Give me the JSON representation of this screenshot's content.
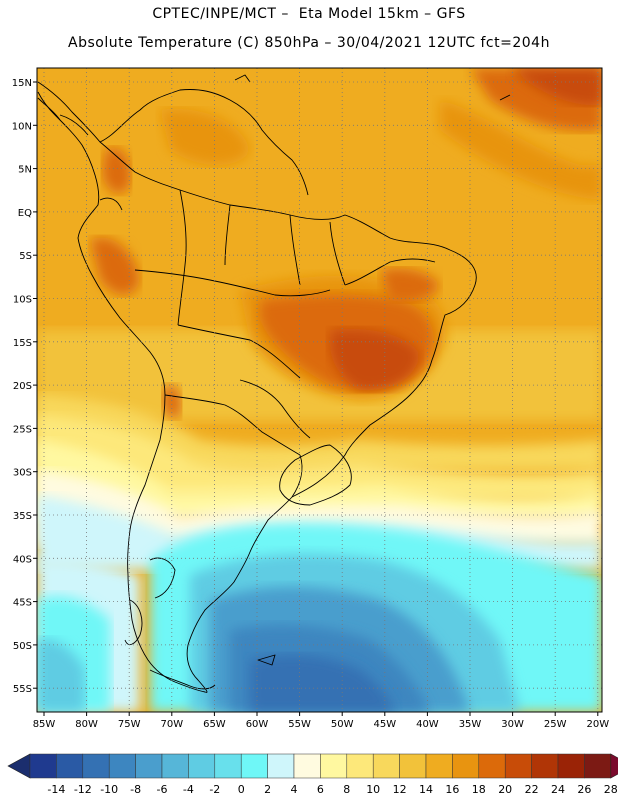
{
  "header": {
    "line1": "CPTEC/INPE/MCT –  Eta Model 15km – GFS",
    "line2": "Absolute Temperature (C) 850hPa – 30/04/2021 12UTC fct=204h"
  },
  "map": {
    "lat_labels": [
      "15N",
      "10N",
      "5N",
      "EQ",
      "5S",
      "10S",
      "15S",
      "20S",
      "25S",
      "30S",
      "35S",
      "40S",
      "45S",
      "50S",
      "55S"
    ],
    "lon_labels": [
      "85W",
      "80W",
      "75W",
      "70W",
      "65W",
      "60W",
      "55W",
      "50W",
      "45W",
      "40W",
      "35W",
      "30W",
      "25W",
      "20W"
    ],
    "grid": "dotted"
  },
  "legend": {
    "labels": [
      "-14",
      "-12",
      "-10",
      "-8",
      "-6",
      "-4",
      "-2",
      "0",
      "2",
      "4",
      "6",
      "8",
      "10",
      "12",
      "14",
      "16",
      "18",
      "20",
      "22",
      "24",
      "26",
      "28"
    ],
    "colors": [
      "#1f3a8f",
      "#2a5aa5",
      "#3471b3",
      "#3d86c0",
      "#4a9ecd",
      "#56b6d8",
      "#5fcce3",
      "#68e0ec",
      "#6ff7f7",
      "#cff6fb",
      "#fffbe0",
      "#fff8a0",
      "#fde87a",
      "#f8d85c",
      "#f2c23a",
      "#efac20",
      "#e89410",
      "#dc6a0a",
      "#c84c08",
      "#b03506",
      "#9a2306",
      "#7c1a14"
    ],
    "low_arrow_color": "#1b2e6e",
    "high_arrow_color": "#7a0a2c"
  }
}
